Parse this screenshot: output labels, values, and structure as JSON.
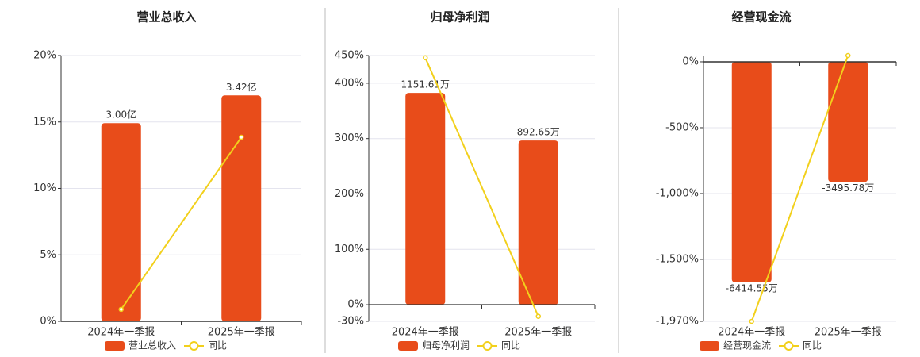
{
  "chart_data": [
    {
      "type": "combo",
      "title": "营业总收入",
      "categories": [
        "2024年一季报",
        "2025年一季报"
      ],
      "series": [
        {
          "name": "营业总收入",
          "color": "#e84c1a",
          "type": "bar",
          "values": [
            3.0,
            3.42
          ],
          "value_labels": [
            "3.00亿",
            "3.42亿"
          ]
        },
        {
          "name": "同比",
          "color": "#f2d01c",
          "type": "line",
          "values": [
            0.9,
            13.85
          ]
        }
      ],
      "ylim": [
        0,
        20
      ],
      "yticks": [
        {
          "value": 0,
          "label": "0%"
        },
        {
          "value": 5,
          "label": "5%"
        },
        {
          "value": 10,
          "label": "10%"
        },
        {
          "value": 15,
          "label": "15%"
        },
        {
          "value": 20,
          "label": "20%"
        }
      ],
      "grid": true
    },
    {
      "type": "combo",
      "title": "归母净利润",
      "categories": [
        "2024年一季报",
        "2025年一季报"
      ],
      "series": [
        {
          "name": "归母净利润",
          "color": "#e84c1a",
          "type": "bar",
          "values": [
            1151.61,
            892.65
          ],
          "value_labels": [
            "1151.61万",
            "892.65万"
          ]
        },
        {
          "name": "同比",
          "color": "#f2d01c",
          "type": "line",
          "values": [
            446,
            -21
          ]
        }
      ],
      "ylim": [
        -30,
        450
      ],
      "yticks": [
        {
          "value": -30,
          "label": "-30%"
        },
        {
          "value": 0,
          "label": "0%"
        },
        {
          "value": 100,
          "label": "100%"
        },
        {
          "value": 200,
          "label": "200%"
        },
        {
          "value": 300,
          "label": "300%"
        },
        {
          "value": 400,
          "label": "400%"
        },
        {
          "value": 450,
          "label": "450%"
        }
      ],
      "grid": true
    },
    {
      "type": "combo",
      "title": "经营现金流",
      "categories": [
        "2024年一季报",
        "2025年一季报"
      ],
      "series": [
        {
          "name": "经营现金流",
          "color": "#e84c1a",
          "type": "bar",
          "values": [
            -6414.55,
            -3495.78
          ],
          "value_labels": [
            "-6414.55万",
            "-3495.78万"
          ]
        },
        {
          "name": "同比",
          "color": "#f2d01c",
          "type": "line",
          "values": [
            -1970,
            48
          ]
        }
      ],
      "ylim": [
        -1970,
        48
      ],
      "yticks": [
        {
          "value": -1970,
          "label": "-1,970%"
        },
        {
          "value": -1500,
          "label": "-1,500%"
        },
        {
          "value": -1000,
          "label": "-1,000%"
        },
        {
          "value": -500,
          "label": "-500%"
        },
        {
          "value": 0,
          "label": "0%"
        }
      ],
      "grid": true
    }
  ]
}
